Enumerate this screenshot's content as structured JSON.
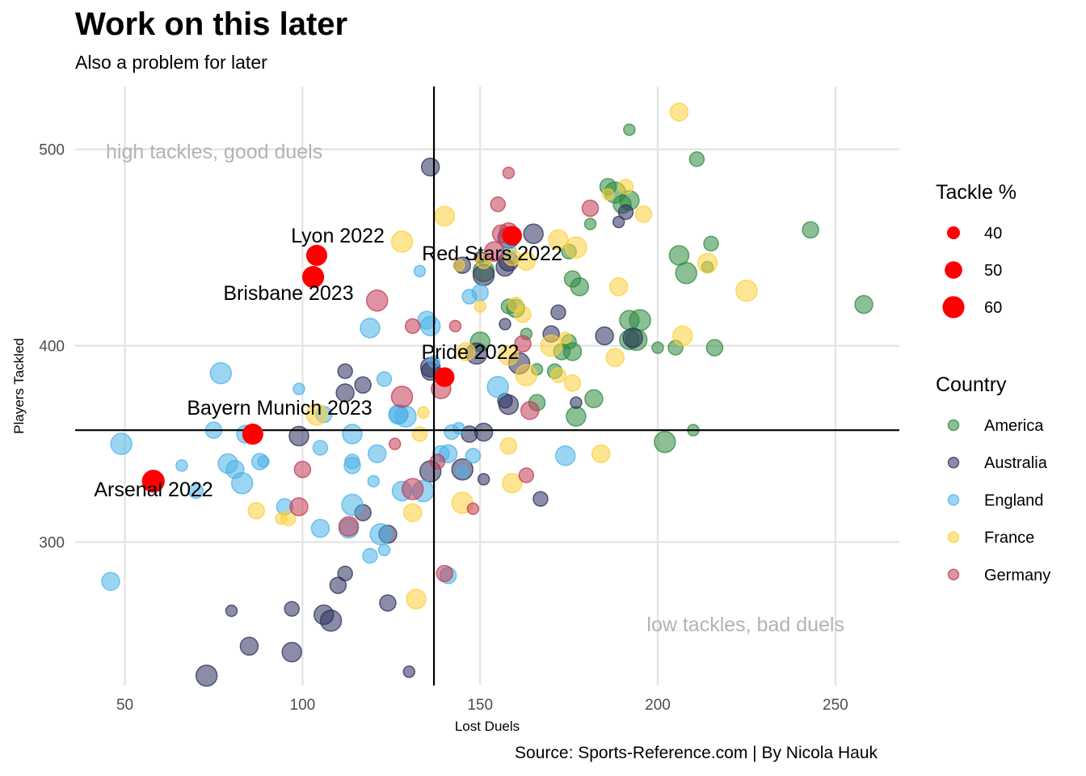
{
  "title": "Work on this later",
  "subtitle": "Also a problem for later",
  "caption": "Source: Sports-Reference.com | By Nicola Hauk",
  "chart_data": {
    "type": "scatter",
    "xlabel": "Lost Duels",
    "ylabel": "Players Tackled",
    "xlim": [
      36,
      268
    ],
    "ylim": [
      227,
      532
    ],
    "xticks": [
      50,
      100,
      150,
      200,
      250
    ],
    "yticks": [
      300,
      400,
      500
    ],
    "grid": true,
    "reference_lines": {
      "x": 137,
      "y": 357
    },
    "quadrant_labels": {
      "top_left": "high tackles, good duels",
      "bottom_right": "low tackles, bad duels"
    },
    "legend_position": "right",
    "size_legend": {
      "title": "Tackle %",
      "values": [
        40,
        50,
        60
      ]
    },
    "colors": {
      "America": "#2e8b3e",
      "Australia": "#2b2f5c",
      "England": "#4bb3e8",
      "France": "#fcd03a",
      "Germany": "#c23b53",
      "highlight": "#ff0000"
    },
    "series": [
      {
        "name": "America",
        "points": [
          [
            192,
            510
          ],
          [
            211,
            495
          ],
          [
            186,
            481
          ],
          [
            190,
            472
          ],
          [
            192,
            474
          ],
          [
            188,
            478
          ],
          [
            181,
            462
          ],
          [
            175,
            448
          ],
          [
            176,
            434
          ],
          [
            178,
            430
          ],
          [
            206,
            446
          ],
          [
            208,
            437
          ],
          [
            214,
            440
          ],
          [
            215,
            452
          ],
          [
            243,
            459
          ],
          [
            258,
            421
          ],
          [
            192,
            413
          ],
          [
            195,
            413
          ],
          [
            163,
            406
          ],
          [
            175,
            402
          ],
          [
            173,
            397
          ],
          [
            176,
            397
          ],
          [
            192,
            403
          ],
          [
            194,
            403
          ],
          [
            200,
            399
          ],
          [
            205,
            399
          ],
          [
            216,
            399
          ],
          [
            160,
            419
          ],
          [
            150,
            402
          ],
          [
            151,
            438
          ],
          [
            166,
            388
          ],
          [
            171,
            387
          ],
          [
            166,
            371
          ],
          [
            182,
            373
          ],
          [
            177,
            364
          ],
          [
            202,
            351
          ],
          [
            210,
            357
          ],
          [
            158,
            420
          ]
        ]
      },
      {
        "name": "Australia",
        "points": [
          [
            136,
            491
          ],
          [
            165,
            457
          ],
          [
            158,
            455
          ],
          [
            189,
            463
          ],
          [
            191,
            468
          ],
          [
            145,
            441
          ],
          [
            157,
            440
          ],
          [
            158,
            443
          ],
          [
            151,
            436
          ],
          [
            150,
            445
          ],
          [
            172,
            417
          ],
          [
            170,
            406
          ],
          [
            185,
            405
          ],
          [
            193,
            404
          ],
          [
            149,
            396
          ],
          [
            157,
            411
          ],
          [
            112,
            387
          ],
          [
            117,
            380
          ],
          [
            112,
            376
          ],
          [
            136,
            389
          ],
          [
            161,
            391
          ],
          [
            177,
            371
          ],
          [
            157,
            372
          ],
          [
            147,
            355
          ],
          [
            151,
            356
          ],
          [
            99,
            354
          ],
          [
            136,
            336
          ],
          [
            151,
            332
          ],
          [
            167,
            322
          ],
          [
            117,
            315
          ],
          [
            124,
            304
          ],
          [
            106,
            263
          ],
          [
            108,
            260
          ],
          [
            80,
            265
          ],
          [
            97,
            266
          ],
          [
            124,
            269
          ],
          [
            85,
            247
          ],
          [
            97,
            244
          ],
          [
            73,
            232
          ],
          [
            130,
            234
          ],
          [
            112,
            284
          ],
          [
            110,
            278
          ],
          [
            136,
            387
          ],
          [
            158,
            370
          ],
          [
            145,
            337
          ]
        ]
      },
      {
        "name": "England",
        "points": [
          [
            133,
            438
          ],
          [
            147,
            425
          ],
          [
            150,
            427
          ],
          [
            135,
            413
          ],
          [
            119,
            409
          ],
          [
            77,
            386
          ],
          [
            99,
            378
          ],
          [
            123,
            383
          ],
          [
            106,
            365
          ],
          [
            127,
            365
          ],
          [
            127,
            365
          ],
          [
            155,
            379
          ],
          [
            144,
            358
          ],
          [
            142,
            356
          ],
          [
            75,
            357
          ],
          [
            84,
            355
          ],
          [
            114,
            355
          ],
          [
            49,
            350
          ],
          [
            89,
            341
          ],
          [
            105,
            348
          ],
          [
            88,
            341
          ],
          [
            81,
            337
          ],
          [
            79,
            340
          ],
          [
            83,
            330
          ],
          [
            66,
            339
          ],
          [
            70,
            326
          ],
          [
            95,
            318
          ],
          [
            105,
            307
          ],
          [
            113,
            307
          ],
          [
            114,
            319
          ],
          [
            120,
            331
          ],
          [
            114,
            341
          ],
          [
            114,
            339
          ],
          [
            121,
            345
          ],
          [
            128,
            326
          ],
          [
            134,
            326
          ],
          [
            145,
            336
          ],
          [
            148,
            344
          ],
          [
            139,
            345
          ],
          [
            141,
            345
          ],
          [
            174,
            344
          ],
          [
            122,
            304
          ],
          [
            123,
            296
          ],
          [
            119,
            293
          ],
          [
            141,
            283
          ],
          [
            46,
            280
          ],
          [
            136,
            410
          ],
          [
            129,
            364
          ],
          [
            137,
            392
          ],
          [
            158,
            448
          ]
        ]
      },
      {
        "name": "France",
        "points": [
          [
            206,
            519
          ],
          [
            140,
            466
          ],
          [
            128,
            453
          ],
          [
            144,
            441
          ],
          [
            151,
            443
          ],
          [
            159,
            445
          ],
          [
            163,
            443
          ],
          [
            172,
            454
          ],
          [
            177,
            450
          ],
          [
            186,
            477
          ],
          [
            191,
            481
          ],
          [
            196,
            467
          ],
          [
            189,
            430
          ],
          [
            214,
            442
          ],
          [
            225,
            428
          ],
          [
            150,
            420
          ],
          [
            160,
            421
          ],
          [
            162,
            416
          ],
          [
            146,
            397
          ],
          [
            158,
            395
          ],
          [
            170,
            400
          ],
          [
            174,
            404
          ],
          [
            172,
            385
          ],
          [
            176,
            381
          ],
          [
            188,
            394
          ],
          [
            207,
            405
          ],
          [
            163,
            385
          ],
          [
            134,
            366
          ],
          [
            133,
            355
          ],
          [
            158,
            349
          ],
          [
            184,
            345
          ],
          [
            159,
            330
          ],
          [
            145,
            320
          ],
          [
            94,
            312
          ],
          [
            96,
            312
          ],
          [
            87,
            316
          ],
          [
            131,
            315
          ],
          [
            132,
            271
          ],
          [
            104,
            365
          ]
        ]
      },
      {
        "name": "Germany",
        "points": [
          [
            158,
            488
          ],
          [
            155,
            472
          ],
          [
            181,
            470
          ],
          [
            156,
            457
          ],
          [
            154,
            448
          ],
          [
            121,
            423
          ],
          [
            143,
            410
          ],
          [
            131,
            410
          ],
          [
            162,
            401
          ],
          [
            164,
            367
          ],
          [
            139,
            378
          ],
          [
            128,
            374
          ],
          [
            126,
            350
          ],
          [
            138,
            341
          ],
          [
            100,
            337
          ],
          [
            99,
            318
          ],
          [
            113,
            308
          ],
          [
            131,
            327
          ],
          [
            148,
            317
          ],
          [
            163,
            334
          ],
          [
            140,
            284
          ],
          [
            158,
            458
          ]
        ]
      }
    ],
    "size_data": {
      "note": "tackle % per point not individually labeled; marker sizes vary"
    },
    "highlighted": [
      {
        "label": "Lyon 2022",
        "x": 104,
        "y": 446,
        "tackle_pct": 58
      },
      {
        "label": "Brisbane 2023",
        "x": 103,
        "y": 435,
        "tackle_pct": 60
      },
      {
        "label": "Red Stars 2022",
        "x": 159,
        "y": 456,
        "tackle_pct": 55
      },
      {
        "label": "Pride 2022",
        "x": 140,
        "y": 384,
        "tackle_pct": 55
      },
      {
        "label": "Bayern Munich 2023",
        "x": 86,
        "y": 355,
        "tackle_pct": 58
      },
      {
        "label": "Arsenal 2022",
        "x": 58,
        "y": 331,
        "tackle_pct": 62
      }
    ]
  }
}
